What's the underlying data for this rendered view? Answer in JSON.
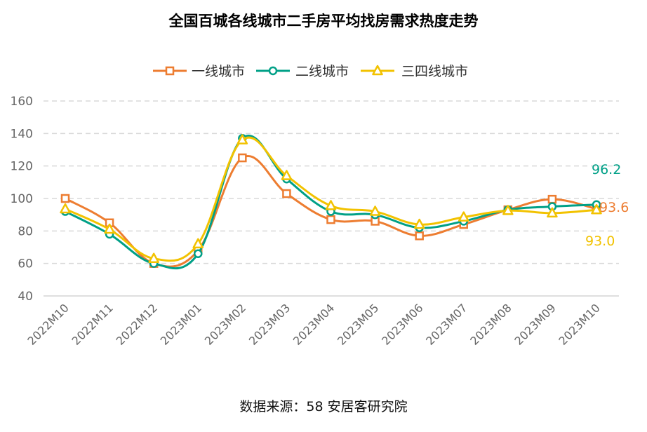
{
  "chart_data": {
    "type": "line",
    "title": "全国百城各线城市二手房平均找房需求热度走势",
    "source": "数据来源：58 安居客研究院",
    "categories": [
      "2022M10",
      "2022M11",
      "2022M12",
      "2023M01",
      "2023M02",
      "2023M03",
      "2023M04",
      "2023M05",
      "2023M06",
      "2023M07",
      "2023M08",
      "2023M09",
      "2023M10"
    ],
    "ylim": [
      40,
      160
    ],
    "yticks": [
      40,
      60,
      80,
      100,
      120,
      140,
      160
    ],
    "grid": true,
    "legend_position": "top-center",
    "series": [
      {
        "name": "一线城市",
        "color": "#ED7D31",
        "marker": "square",
        "values": [
          100,
          85,
          60,
          68,
          125,
          103,
          87,
          86,
          77,
          84,
          93,
          99.5,
          93.6
        ],
        "end_label": "93.6"
      },
      {
        "name": "二线城市",
        "color": "#00A087",
        "marker": "circle",
        "values": [
          92,
          78,
          60,
          66,
          137,
          112,
          92,
          90,
          82,
          86,
          93,
          95,
          96.2
        ],
        "end_label": "96.2"
      },
      {
        "name": "三四线城市",
        "color": "#F2C200",
        "marker": "triangle",
        "values": [
          93.5,
          81,
          63,
          72,
          136,
          114,
          95.5,
          92,
          84,
          88.5,
          92.5,
          91,
          93.0
        ],
        "end_label": "93.0"
      }
    ]
  }
}
